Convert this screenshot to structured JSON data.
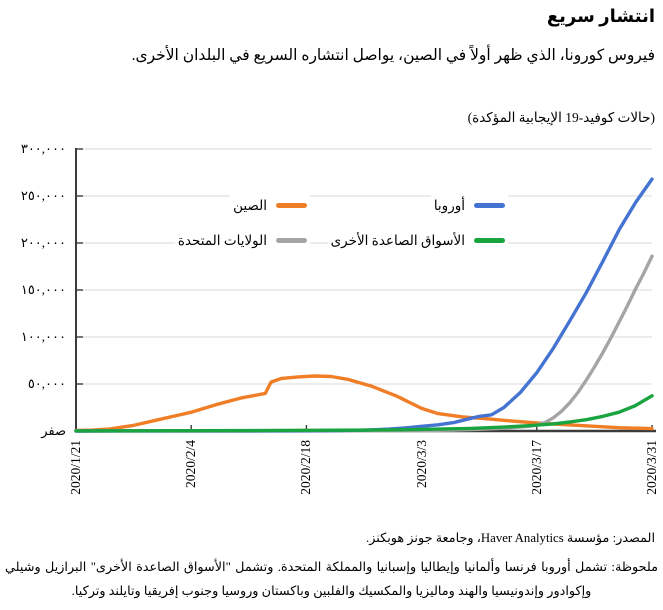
{
  "chart_data": {
    "type": "line",
    "title": "انتشار سريع",
    "subtitle": "فيروس كورونا، الذي ظهر أولاً في الصين، يواصل انتشاره السريع في البلدان الأخرى.",
    "units_label": "(حالات كوفيد-19 الإيجابية المؤكدة)",
    "grid": "horizontal",
    "legend_position": "inside-top",
    "x_axis": {
      "range_days": [
        0,
        70
      ],
      "ticks": [
        {
          "day": 0,
          "label": "2020/1/21"
        },
        {
          "day": 14,
          "label": "2020/2/4"
        },
        {
          "day": 28,
          "label": "2020/2/18"
        },
        {
          "day": 42,
          "label": "2020/3/3"
        },
        {
          "day": 56,
          "label": "2020/3/17"
        },
        {
          "day": 70,
          "label": "2020/3/31"
        }
      ]
    },
    "y_axis": {
      "ylim": [
        0,
        300000
      ],
      "ticks": [
        {
          "value": 0,
          "label": "صفر"
        },
        {
          "value": 50000,
          "label": "٥٠,٠٠٠"
        },
        {
          "value": 100000,
          "label": "١٠٠,٠٠٠"
        },
        {
          "value": 150000,
          "label": "١٥٠,٠٠٠"
        },
        {
          "value": 200000,
          "label": "٢٠٠,٠٠٠"
        },
        {
          "value": 250000,
          "label": "٢٥٠,٠٠٠"
        },
        {
          "value": 300000,
          "label": "٣٠٠,٠٠٠"
        }
      ]
    },
    "series": [
      {
        "id": "china",
        "name": "الصين",
        "color": "#F07E27",
        "points": [
          [
            0,
            500
          ],
          [
            2,
            1000
          ],
          [
            4,
            2000
          ],
          [
            7,
            6000
          ],
          [
            10,
            12000
          ],
          [
            13,
            18000
          ],
          [
            14,
            20000
          ],
          [
            17,
            28000
          ],
          [
            20,
            35000
          ],
          [
            23,
            40000
          ],
          [
            23.7,
            52000
          ],
          [
            25,
            56000
          ],
          [
            27,
            57500
          ],
          [
            29,
            58500
          ],
          [
            31,
            58000
          ],
          [
            33,
            55000
          ],
          [
            36,
            47500
          ],
          [
            39,
            37000
          ],
          [
            42,
            24000
          ],
          [
            44,
            18500
          ],
          [
            47,
            15000
          ],
          [
            50,
            13000
          ],
          [
            53,
            10500
          ],
          [
            56,
            8500
          ],
          [
            59,
            7000
          ],
          [
            63,
            5000
          ],
          [
            66,
            3500
          ],
          [
            70,
            2500
          ]
        ]
      },
      {
        "id": "us",
        "name": "الولايات المتحدة",
        "color": "#A5A5A5",
        "points": [
          [
            0,
            0
          ],
          [
            30,
            150
          ],
          [
            42,
            500
          ],
          [
            46,
            1000
          ],
          [
            49,
            1800
          ],
          [
            51,
            2600
          ],
          [
            53,
            3600
          ],
          [
            55,
            5000
          ],
          [
            56,
            6200
          ],
          [
            57,
            9000
          ],
          [
            58,
            14000
          ],
          [
            59,
            21000
          ],
          [
            60,
            30000
          ],
          [
            61,
            41000
          ],
          [
            62,
            54000
          ],
          [
            63,
            68000
          ],
          [
            64,
            83000
          ],
          [
            65,
            99000
          ],
          [
            66,
            116000
          ],
          [
            67,
            133000
          ],
          [
            68,
            151000
          ],
          [
            69,
            168000
          ],
          [
            70,
            186000
          ]
        ]
      },
      {
        "id": "europe",
        "name": "أوروبا",
        "color": "#4473D2",
        "points": [
          [
            0,
            0
          ],
          [
            14,
            60
          ],
          [
            21,
            120
          ],
          [
            28,
            260
          ],
          [
            32,
            520
          ],
          [
            35,
            900
          ],
          [
            38,
            2000
          ],
          [
            40,
            3200
          ],
          [
            42,
            5000
          ],
          [
            44,
            6600
          ],
          [
            46,
            9200
          ],
          [
            48,
            13500
          ],
          [
            49,
            15500
          ],
          [
            50.5,
            17200
          ],
          [
            52,
            25000
          ],
          [
            54,
            41000
          ],
          [
            56,
            62000
          ],
          [
            58,
            88000
          ],
          [
            60,
            117000
          ],
          [
            62,
            147000
          ],
          [
            64,
            180000
          ],
          [
            66,
            214000
          ],
          [
            68,
            243000
          ],
          [
            70,
            268000
          ]
        ]
      },
      {
        "id": "em",
        "name": "الأسواق الصاعدة الأخرى",
        "color": "#19A43F",
        "points": [
          [
            0,
            100
          ],
          [
            7,
            200
          ],
          [
            14,
            320
          ],
          [
            21,
            460
          ],
          [
            28,
            700
          ],
          [
            35,
            1000
          ],
          [
            40,
            1400
          ],
          [
            44,
            2000
          ],
          [
            48,
            2800
          ],
          [
            52,
            4200
          ],
          [
            55,
            5600
          ],
          [
            58,
            7600
          ],
          [
            60,
            9600
          ],
          [
            62,
            12000
          ],
          [
            64,
            15500
          ],
          [
            66,
            20000
          ],
          [
            68,
            27000
          ],
          [
            70,
            37500
          ]
        ]
      }
    ],
    "legend": {
      "items": [
        {
          "label": "أوروبا",
          "series": "europe",
          "row": 0,
          "col": 0
        },
        {
          "label": "الصين",
          "series": "china",
          "row": 0,
          "col": 1
        },
        {
          "label": "الأسواق الصاعدة الأخرى",
          "series": "em",
          "row": 1,
          "col": 0
        },
        {
          "label": "الولايات المتحدة",
          "series": "us",
          "row": 1,
          "col": 1
        }
      ]
    },
    "colors": {
      "gridline": "#DADADA",
      "axis": "#3B3B3B"
    }
  },
  "footer": {
    "source": "المصدر: مؤسسة Haver Analytics، وجامعة جونز هوبكنز.",
    "note": "ملحوظة: تشمل أوروبا فرنسا وألمانيا وإيطاليا وإسبانيا والمملكة المتحدة. وتشمل \"الأسواق الصاعدة الأخرى\" البرازيل وشيلي وإكوادور وإندونيسيا والهند وماليزيا والمكسيك والفلبين وباكستان وروسيا وجنوب إفريقيا وتايلند وتركيا."
  }
}
